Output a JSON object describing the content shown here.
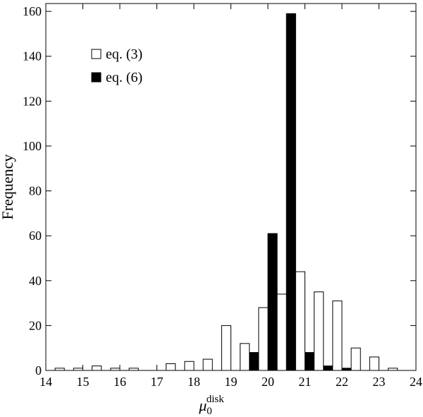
{
  "chart_data": {
    "type": "histogram",
    "y_label": "Frequency",
    "x_label": {
      "symbol": "μ",
      "sub": "0",
      "sup": "disk"
    },
    "bins": [
      14,
      14.5,
      15,
      15.5,
      16,
      16.5,
      17,
      17.5,
      18,
      18.5,
      19,
      19.5,
      20,
      20.5,
      21,
      21.5,
      22,
      22.5,
      23,
      23.5,
      24
    ],
    "series": [
      {
        "name": "eq. (6)",
        "color": "#000000",
        "values": [
          0,
          0,
          0,
          0,
          0,
          0,
          0,
          0,
          0,
          0,
          0,
          8,
          61,
          159,
          8,
          2,
          1,
          0,
          0,
          0
        ]
      },
      {
        "name": "eq. (3)",
        "color": "#ffffff",
        "values": [
          1,
          1,
          2,
          1,
          1,
          0,
          3,
          4,
          5,
          20,
          12,
          28,
          34,
          44,
          35,
          31,
          10,
          6,
          1,
          0
        ]
      }
    ],
    "legend_order": [
      1,
      0
    ],
    "legend": "upper left",
    "xlim": [
      14,
      24
    ],
    "ylim": [
      0,
      163.5
    ],
    "xticks": [
      14,
      15,
      16,
      17,
      18,
      19,
      20,
      21,
      22,
      23,
      24
    ],
    "yticks": [
      0,
      20,
      40,
      60,
      80,
      100,
      120,
      140,
      160
    ]
  }
}
